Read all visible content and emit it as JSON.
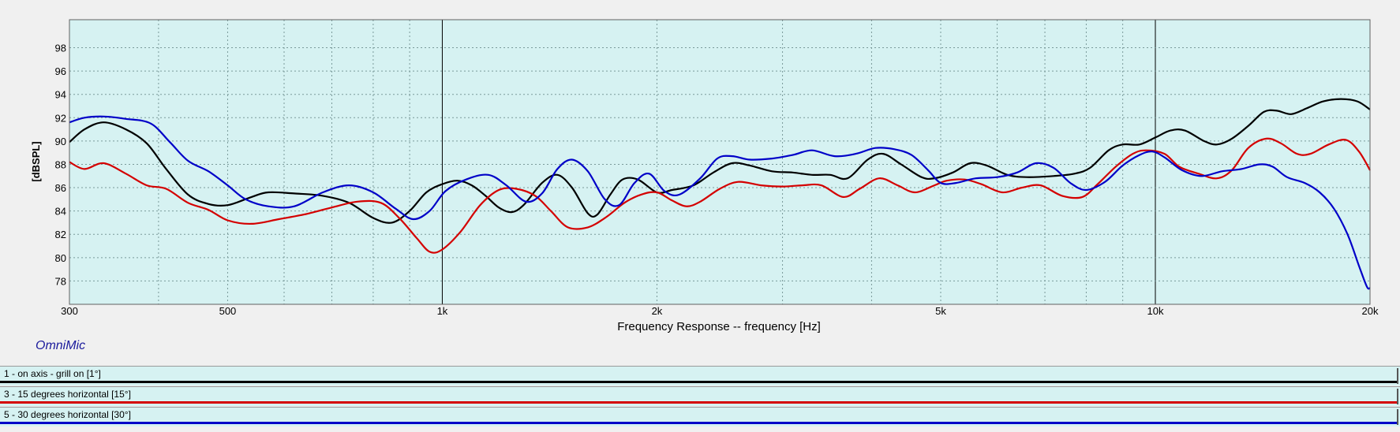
{
  "brand": "OmniMic",
  "legend": [
    {
      "label": "1 - on axis - grill on [1°]",
      "color": "#000000"
    },
    {
      "label": "3 - 15 degrees horizontal [15°]",
      "color": "#d40000"
    },
    {
      "label": "5 - 30 degrees horizontal [30°]",
      "color": "#0000c8"
    }
  ],
  "colors": {
    "plot_bg": "#d6f2f2",
    "grid": "#7a9a9a",
    "major_grid": "#000000"
  },
  "chart_data": {
    "type": "line",
    "xlabel": "Frequency Response -- frequency [Hz]",
    "ylabel": "[dBSPL]",
    "xscale": "log",
    "xlim": [
      300,
      20000
    ],
    "ylim": [
      76,
      100.4
    ],
    "x_ticks": [
      {
        "value": 300,
        "label": "300"
      },
      {
        "value": 500,
        "label": "500"
      },
      {
        "value": 1000,
        "label": "1k"
      },
      {
        "value": 2000,
        "label": "2k"
      },
      {
        "value": 5000,
        "label": "5k"
      },
      {
        "value": 10000,
        "label": "10k"
      },
      {
        "value": 20000,
        "label": "20k"
      }
    ],
    "y_ticks": [
      78,
      80,
      82,
      84,
      86,
      88,
      90,
      92,
      94,
      96,
      98
    ],
    "grid": true,
    "series": [
      {
        "name": "1 - on axis - grill on [1°]",
        "color": "#000000",
        "points": [
          [
            300,
            89.9
          ],
          [
            315,
            91
          ],
          [
            335,
            91.6
          ],
          [
            360,
            91
          ],
          [
            385,
            89.8
          ],
          [
            410,
            87.6
          ],
          [
            440,
            85.4
          ],
          [
            470,
            84.6
          ],
          [
            500,
            84.5
          ],
          [
            540,
            85.2
          ],
          [
            570,
            85.6
          ],
          [
            620,
            85.5
          ],
          [
            680,
            85.3
          ],
          [
            740,
            84.7
          ],
          [
            800,
            83.4
          ],
          [
            850,
            83
          ],
          [
            900,
            84
          ],
          [
            950,
            85.6
          ],
          [
            1000,
            86.3
          ],
          [
            1050,
            86.6
          ],
          [
            1100,
            86.2
          ],
          [
            1150,
            85.3
          ],
          [
            1200,
            84.3
          ],
          [
            1250,
            83.9
          ],
          [
            1300,
            84.5
          ],
          [
            1380,
            86.4
          ],
          [
            1450,
            87.1
          ],
          [
            1520,
            86
          ],
          [
            1600,
            83.8
          ],
          [
            1650,
            83.7
          ],
          [
            1720,
            85.4
          ],
          [
            1790,
            86.7
          ],
          [
            1880,
            86.7
          ],
          [
            2000,
            85.6
          ],
          [
            2100,
            85.8
          ],
          [
            2250,
            86.2
          ],
          [
            2400,
            87.3
          ],
          [
            2550,
            88.1
          ],
          [
            2700,
            87.9
          ],
          [
            2900,
            87.4
          ],
          [
            3100,
            87.3
          ],
          [
            3300,
            87.1
          ],
          [
            3500,
            87.1
          ],
          [
            3700,
            86.8
          ],
          [
            3950,
            88.4
          ],
          [
            4150,
            88.9
          ],
          [
            4400,
            88
          ],
          [
            4700,
            86.9
          ],
          [
            4900,
            86.8
          ],
          [
            5200,
            87.3
          ],
          [
            5500,
            88.1
          ],
          [
            5800,
            87.9
          ],
          [
            6200,
            87.1
          ],
          [
            6600,
            86.9
          ],
          [
            7200,
            87
          ],
          [
            7700,
            87.2
          ],
          [
            8100,
            87.7
          ],
          [
            8600,
            89.2
          ],
          [
            9000,
            89.7
          ],
          [
            9500,
            89.7
          ],
          [
            10000,
            90.3
          ],
          [
            10500,
            90.9
          ],
          [
            11000,
            90.9
          ],
          [
            11700,
            90
          ],
          [
            12200,
            89.7
          ],
          [
            12800,
            90.2
          ],
          [
            13500,
            91.3
          ],
          [
            14200,
            92.5
          ],
          [
            14800,
            92.6
          ],
          [
            15500,
            92.3
          ],
          [
            16300,
            92.8
          ],
          [
            17200,
            93.4
          ],
          [
            18200,
            93.6
          ],
          [
            19200,
            93.4
          ],
          [
            20000,
            92.7
          ]
        ]
      },
      {
        "name": "3 - 15 degrees horizontal [15°]",
        "color": "#d40000",
        "points": [
          [
            300,
            88.2
          ],
          [
            315,
            87.6
          ],
          [
            335,
            88.1
          ],
          [
            360,
            87.2
          ],
          [
            385,
            86.2
          ],
          [
            410,
            85.9
          ],
          [
            440,
            84.7
          ],
          [
            470,
            84.1
          ],
          [
            500,
            83.2
          ],
          [
            540,
            82.9
          ],
          [
            590,
            83.3
          ],
          [
            640,
            83.7
          ],
          [
            700,
            84.3
          ],
          [
            760,
            84.8
          ],
          [
            820,
            84.7
          ],
          [
            870,
            83.4
          ],
          [
            920,
            81.7
          ],
          [
            960,
            80.5
          ],
          [
            1000,
            80.7
          ],
          [
            1060,
            82.2
          ],
          [
            1130,
            84.5
          ],
          [
            1200,
            85.8
          ],
          [
            1270,
            85.9
          ],
          [
            1350,
            85.3
          ],
          [
            1420,
            84
          ],
          [
            1500,
            82.6
          ],
          [
            1600,
            82.6
          ],
          [
            1700,
            83.5
          ],
          [
            1800,
            84.7
          ],
          [
            1900,
            85.4
          ],
          [
            2000,
            85.6
          ],
          [
            2100,
            84.9
          ],
          [
            2200,
            84.4
          ],
          [
            2300,
            84.8
          ],
          [
            2450,
            85.9
          ],
          [
            2600,
            86.5
          ],
          [
            2800,
            86.2
          ],
          [
            3000,
            86.1
          ],
          [
            3200,
            86.2
          ],
          [
            3400,
            86.2
          ],
          [
            3650,
            85.2
          ],
          [
            3850,
            85.9
          ],
          [
            4100,
            86.8
          ],
          [
            4350,
            86.2
          ],
          [
            4600,
            85.6
          ],
          [
            4900,
            86.2
          ],
          [
            5100,
            86.6
          ],
          [
            5400,
            86.7
          ],
          [
            5700,
            86.3
          ],
          [
            6100,
            85.6
          ],
          [
            6500,
            86
          ],
          [
            6900,
            86.2
          ],
          [
            7400,
            85.3
          ],
          [
            7900,
            85.2
          ],
          [
            8300,
            86.3
          ],
          [
            8800,
            87.8
          ],
          [
            9300,
            88.9
          ],
          [
            9700,
            89.2
          ],
          [
            10300,
            88.9
          ],
          [
            10800,
            87.8
          ],
          [
            11500,
            87.2
          ],
          [
            12200,
            86.8
          ],
          [
            12800,
            87.5
          ],
          [
            13500,
            89.4
          ],
          [
            14300,
            90.2
          ],
          [
            15000,
            89.8
          ],
          [
            15800,
            88.9
          ],
          [
            16500,
            88.9
          ],
          [
            17500,
            89.7
          ],
          [
            18500,
            90.1
          ],
          [
            19300,
            89.1
          ],
          [
            20000,
            87.5
          ]
        ]
      },
      {
        "name": "5 - 30 degrees horizontal [30°]",
        "color": "#0000c8",
        "points": [
          [
            300,
            91.6
          ],
          [
            315,
            92
          ],
          [
            335,
            92.1
          ],
          [
            360,
            91.9
          ],
          [
            390,
            91.5
          ],
          [
            415,
            89.9
          ],
          [
            440,
            88.3
          ],
          [
            470,
            87.4
          ],
          [
            500,
            86.2
          ],
          [
            530,
            85
          ],
          [
            570,
            84.4
          ],
          [
            620,
            84.4
          ],
          [
            680,
            85.6
          ],
          [
            740,
            86.2
          ],
          [
            800,
            85.6
          ],
          [
            860,
            84.2
          ],
          [
            910,
            83.3
          ],
          [
            960,
            84
          ],
          [
            1010,
            85.7
          ],
          [
            1080,
            86.7
          ],
          [
            1160,
            87.1
          ],
          [
            1230,
            86.2
          ],
          [
            1310,
            84.8
          ],
          [
            1380,
            85.5
          ],
          [
            1450,
            87.6
          ],
          [
            1520,
            88.4
          ],
          [
            1600,
            87.4
          ],
          [
            1690,
            85
          ],
          [
            1770,
            84.5
          ],
          [
            1860,
            86.4
          ],
          [
            1950,
            87.2
          ],
          [
            2050,
            85.7
          ],
          [
            2150,
            85.4
          ],
          [
            2300,
            86.8
          ],
          [
            2430,
            88.5
          ],
          [
            2550,
            88.7
          ],
          [
            2700,
            88.4
          ],
          [
            2900,
            88.5
          ],
          [
            3100,
            88.8
          ],
          [
            3300,
            89.2
          ],
          [
            3550,
            88.7
          ],
          [
            3800,
            88.9
          ],
          [
            4050,
            89.4
          ],
          [
            4300,
            89.3
          ],
          [
            4550,
            88.8
          ],
          [
            4800,
            87.5
          ],
          [
            5000,
            86.4
          ],
          [
            5250,
            86.4
          ],
          [
            5600,
            86.8
          ],
          [
            6000,
            86.9
          ],
          [
            6400,
            87.3
          ],
          [
            6800,
            88.1
          ],
          [
            7200,
            87.7
          ],
          [
            7600,
            86.4
          ],
          [
            8000,
            85.8
          ],
          [
            8500,
            86.5
          ],
          [
            9000,
            87.9
          ],
          [
            9500,
            88.8
          ],
          [
            9900,
            89.1
          ],
          [
            10300,
            88.6
          ],
          [
            10900,
            87.5
          ],
          [
            11600,
            87
          ],
          [
            12400,
            87.4
          ],
          [
            13200,
            87.6
          ],
          [
            14000,
            88
          ],
          [
            14600,
            87.8
          ],
          [
            15300,
            86.9
          ],
          [
            16200,
            86.4
          ],
          [
            17000,
            85.6
          ],
          [
            17800,
            84.2
          ],
          [
            18600,
            82
          ],
          [
            19300,
            79.3
          ],
          [
            19800,
            77.5
          ],
          [
            20000,
            77.4
          ]
        ]
      }
    ]
  }
}
